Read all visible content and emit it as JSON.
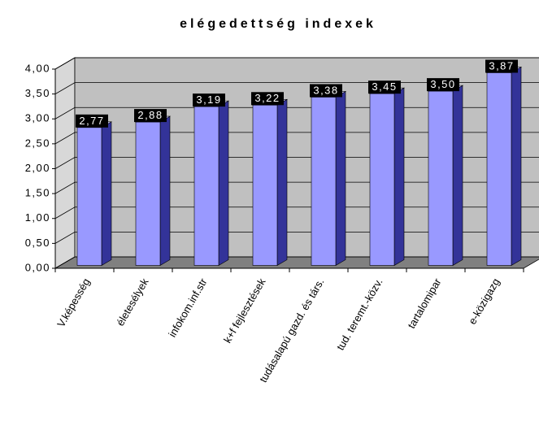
{
  "chart_data": {
    "type": "bar",
    "title": "elégedettség indexek",
    "categories": [
      "V.képesség",
      "életesélyek",
      "infokom.inf.str",
      "k+f fejlesztések",
      "tudásalapú gazd. és társ.",
      "tud. teremt.-közv.",
      "tartalomipar",
      "e-közigazg"
    ],
    "values": [
      2.77,
      2.88,
      3.19,
      3.22,
      3.38,
      3.45,
      3.5,
      3.87
    ],
    "value_labels": [
      "2,77",
      "2,88",
      "3,19",
      "3,22",
      "3,38",
      "3,45",
      "3,50",
      "3,87"
    ],
    "color": "#9999ff",
    "ylim": [
      0,
      4
    ],
    "yticks": [
      {
        "value": 0,
        "label": "0,00"
      },
      {
        "value": 0.5,
        "label": "0,50"
      },
      {
        "value": 1,
        "label": "1,00"
      },
      {
        "value": 1.5,
        "label": "1,50"
      },
      {
        "value": 2,
        "label": "2,00"
      },
      {
        "value": 2.5,
        "label": "2,50"
      },
      {
        "value": 3,
        "label": "3,00"
      },
      {
        "value": 3.5,
        "label": "3,50"
      },
      {
        "value": 4,
        "label": "4,00"
      }
    ],
    "grid": true
  }
}
